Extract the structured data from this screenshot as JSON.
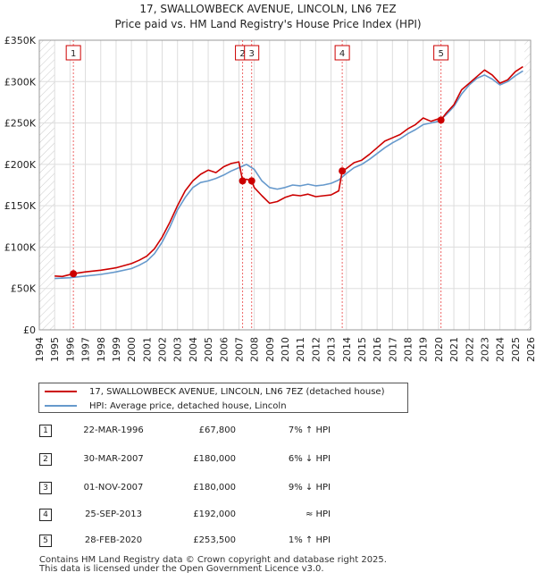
{
  "chart_data": {
    "type": "line",
    "title": "17, SWALLOWBECK AVENUE, LINCOLN, LN6 7EZ",
    "subtitle": "Price paid vs. HM Land Registry's House Price Index (HPI)",
    "xlim": [
      1994,
      2026
    ],
    "ylim": [
      0,
      350000
    ],
    "y_ticks": [
      0,
      50000,
      100000,
      150000,
      200000,
      250000,
      300000,
      350000
    ],
    "y_tick_labels": [
      "£0",
      "£50K",
      "£100K",
      "£150K",
      "£200K",
      "£250K",
      "£300K",
      "£350K"
    ],
    "x_ticks": [
      1994,
      1995,
      1996,
      1997,
      1998,
      1999,
      2000,
      2001,
      2002,
      2003,
      2004,
      2005,
      2006,
      2007,
      2008,
      2009,
      2010,
      2011,
      2012,
      2013,
      2014,
      2015,
      2016,
      2017,
      2018,
      2019,
      2020,
      2021,
      2022,
      2023,
      2024,
      2025,
      2026
    ],
    "data_start": 1995.0,
    "data_end": 2025.6,
    "grid": true,
    "colors": {
      "property": "#cc0000",
      "hpi": "#6699cc",
      "marker": "#cc0000",
      "sale_line": "#ee6666",
      "grid": "#dddddd",
      "hatch": "#cccccc"
    },
    "series": [
      {
        "name": "17, SWALLOWBECK AVENUE, LINCOLN, LN6 7EZ (detached house)",
        "key": "property",
        "x": [
          1995.0,
          1995.5,
          1996.22,
          1997.0,
          1998.0,
          1999.0,
          2000.0,
          2000.5,
          2001.0,
          2001.5,
          2002.0,
          2002.5,
          2003.0,
          2003.5,
          2004.0,
          2004.5,
          2005.0,
          2005.5,
          2006.0,
          2006.5,
          2007.0,
          2007.24,
          2007.5,
          2007.83,
          2008.0,
          2008.5,
          2009.0,
          2009.5,
          2010.0,
          2010.5,
          2011.0,
          2011.5,
          2012.0,
          2012.5,
          2013.0,
          2013.5,
          2013.73,
          2014.0,
          2014.5,
          2015.0,
          2015.5,
          2016.0,
          2016.5,
          2017.0,
          2017.5,
          2018.0,
          2018.5,
          2019.0,
          2019.5,
          2020.0,
          2020.16,
          2020.5,
          2021.0,
          2021.5,
          2022.0,
          2022.5,
          2023.0,
          2023.5,
          2024.0,
          2024.5,
          2025.0,
          2025.5
        ],
        "values": [
          65000,
          64500,
          67800,
          70000,
          72000,
          75000,
          80000,
          84000,
          89000,
          98000,
          112000,
          130000,
          150000,
          168000,
          180000,
          188000,
          193000,
          190000,
          197000,
          201000,
          203000,
          180000,
          182000,
          180000,
          172000,
          162000,
          153000,
          155000,
          160000,
          163000,
          162000,
          164000,
          161000,
          162000,
          163000,
          168000,
          192000,
          195000,
          202000,
          205000,
          212000,
          220000,
          228000,
          232000,
          236000,
          243000,
          248000,
          256000,
          252000,
          255000,
          253500,
          262000,
          272000,
          290000,
          298000,
          306000,
          314000,
          308000,
          298000,
          302000,
          312000,
          318000
        ]
      },
      {
        "name": "HPI: Average price, detached house, Lincoln",
        "key": "hpi",
        "x": [
          1995.0,
          1996.0,
          1997.0,
          1998.0,
          1999.0,
          2000.0,
          2000.5,
          2001.0,
          2001.5,
          2002.0,
          2002.5,
          2003.0,
          2003.5,
          2004.0,
          2004.5,
          2005.0,
          2005.5,
          2006.0,
          2006.5,
          2007.0,
          2007.5,
          2008.0,
          2008.5,
          2009.0,
          2009.5,
          2010.0,
          2010.5,
          2011.0,
          2011.5,
          2012.0,
          2012.5,
          2013.0,
          2013.5,
          2014.0,
          2014.5,
          2015.0,
          2015.5,
          2016.0,
          2016.5,
          2017.0,
          2017.5,
          2018.0,
          2018.5,
          2019.0,
          2019.5,
          2020.0,
          2020.5,
          2021.0,
          2021.5,
          2022.0,
          2022.5,
          2023.0,
          2023.5,
          2024.0,
          2024.5,
          2025.0,
          2025.5
        ],
        "values": [
          62000,
          63000,
          65000,
          67000,
          70000,
          74000,
          78000,
          83000,
          92000,
          106000,
          124000,
          145000,
          160000,
          172000,
          178000,
          180000,
          183000,
          187000,
          192000,
          196000,
          200000,
          194000,
          180000,
          172000,
          170000,
          172000,
          175000,
          174000,
          176000,
          174000,
          175000,
          177000,
          181000,
          189000,
          196000,
          200000,
          206000,
          213000,
          220000,
          226000,
          231000,
          237000,
          242000,
          248000,
          250000,
          252000,
          260000,
          270000,
          285000,
          296000,
          304000,
          308000,
          303000,
          296000,
          300000,
          307000,
          313000
        ]
      }
    ],
    "sales": [
      {
        "label": "1",
        "x": 1996.22,
        "value": 67800
      },
      {
        "label": "2",
        "x": 2007.24,
        "value": 180000
      },
      {
        "label": "3",
        "x": 2007.83,
        "value": 180000
      },
      {
        "label": "4",
        "x": 2013.73,
        "value": 192000
      },
      {
        "label": "5",
        "x": 2020.16,
        "value": 253500
      }
    ]
  },
  "legend": {
    "property_label": "17, SWALLOWBECK AVENUE, LINCOLN, LN6 7EZ (detached house)",
    "hpi_label": "HPI: Average price, detached house, Lincoln"
  },
  "sales_table": [
    {
      "num": "1",
      "date": "22-MAR-1996",
      "price": "£67,800",
      "hpi": "7% ↑ HPI"
    },
    {
      "num": "2",
      "date": "30-MAR-2007",
      "price": "£180,000",
      "hpi": "6% ↓ HPI"
    },
    {
      "num": "3",
      "date": "01-NOV-2007",
      "price": "£180,000",
      "hpi": "9% ↓ HPI"
    },
    {
      "num": "4",
      "date": "25-SEP-2013",
      "price": "£192,000",
      "hpi": "≈ HPI"
    },
    {
      "num": "5",
      "date": "28-FEB-2020",
      "price": "£253,500",
      "hpi": "1% ↑ HPI"
    }
  ],
  "footer": {
    "line1": "Contains HM Land Registry data © Crown copyright and database right 2025.",
    "line2": "This data is licensed under the Open Government Licence v3.0."
  }
}
